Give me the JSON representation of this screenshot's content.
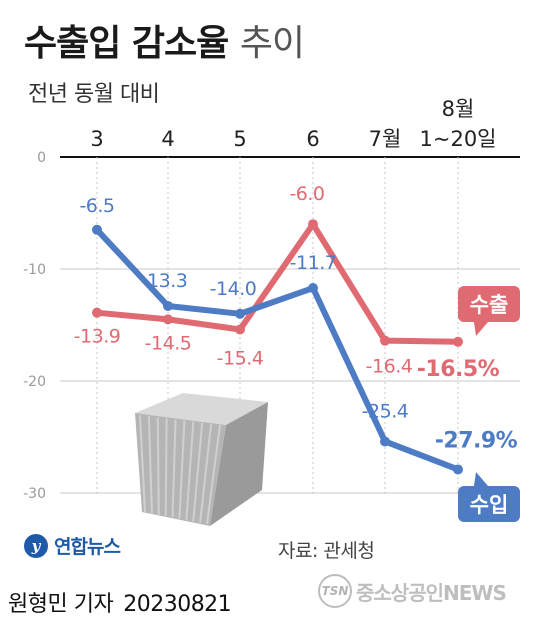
{
  "title_bold": "수출입 감소율",
  "title_light": "추이",
  "subtitle": "전년 동월 대비",
  "source": "자료: 관세청",
  "agency": "연합뉴스",
  "reporter": "원형민 기자",
  "date": "20230821",
  "watermark": "중소상공인NEWS",
  "chart_data": {
    "type": "line",
    "title": "수출입 감소율 추이",
    "subtitle": "전년 동월 대비",
    "categories": [
      "3",
      "4",
      "5",
      "6",
      "7월",
      "8월\n1~20일"
    ],
    "ylim": [
      -30,
      0
    ],
    "yticks": [
      0,
      -10,
      -20,
      -30
    ],
    "grid": "vertical dotted",
    "series": [
      {
        "name": "수출",
        "color": "#e06a72",
        "values": [
          -13.9,
          -14.5,
          -15.4,
          -6.0,
          -16.4,
          -16.5
        ],
        "labels": [
          "-13.9",
          "-14.5",
          "-15.4",
          "-6.0",
          "-16.4",
          "-16.5%"
        ]
      },
      {
        "name": "수입",
        "color": "#4d7cc4",
        "values": [
          -6.5,
          -13.3,
          -14.0,
          -11.7,
          -25.4,
          -27.9
        ],
        "labels": [
          "-6.5",
          "-13.3",
          "-14.0",
          "-11.7",
          "-25.4",
          "-27.9%"
        ]
      }
    ]
  }
}
